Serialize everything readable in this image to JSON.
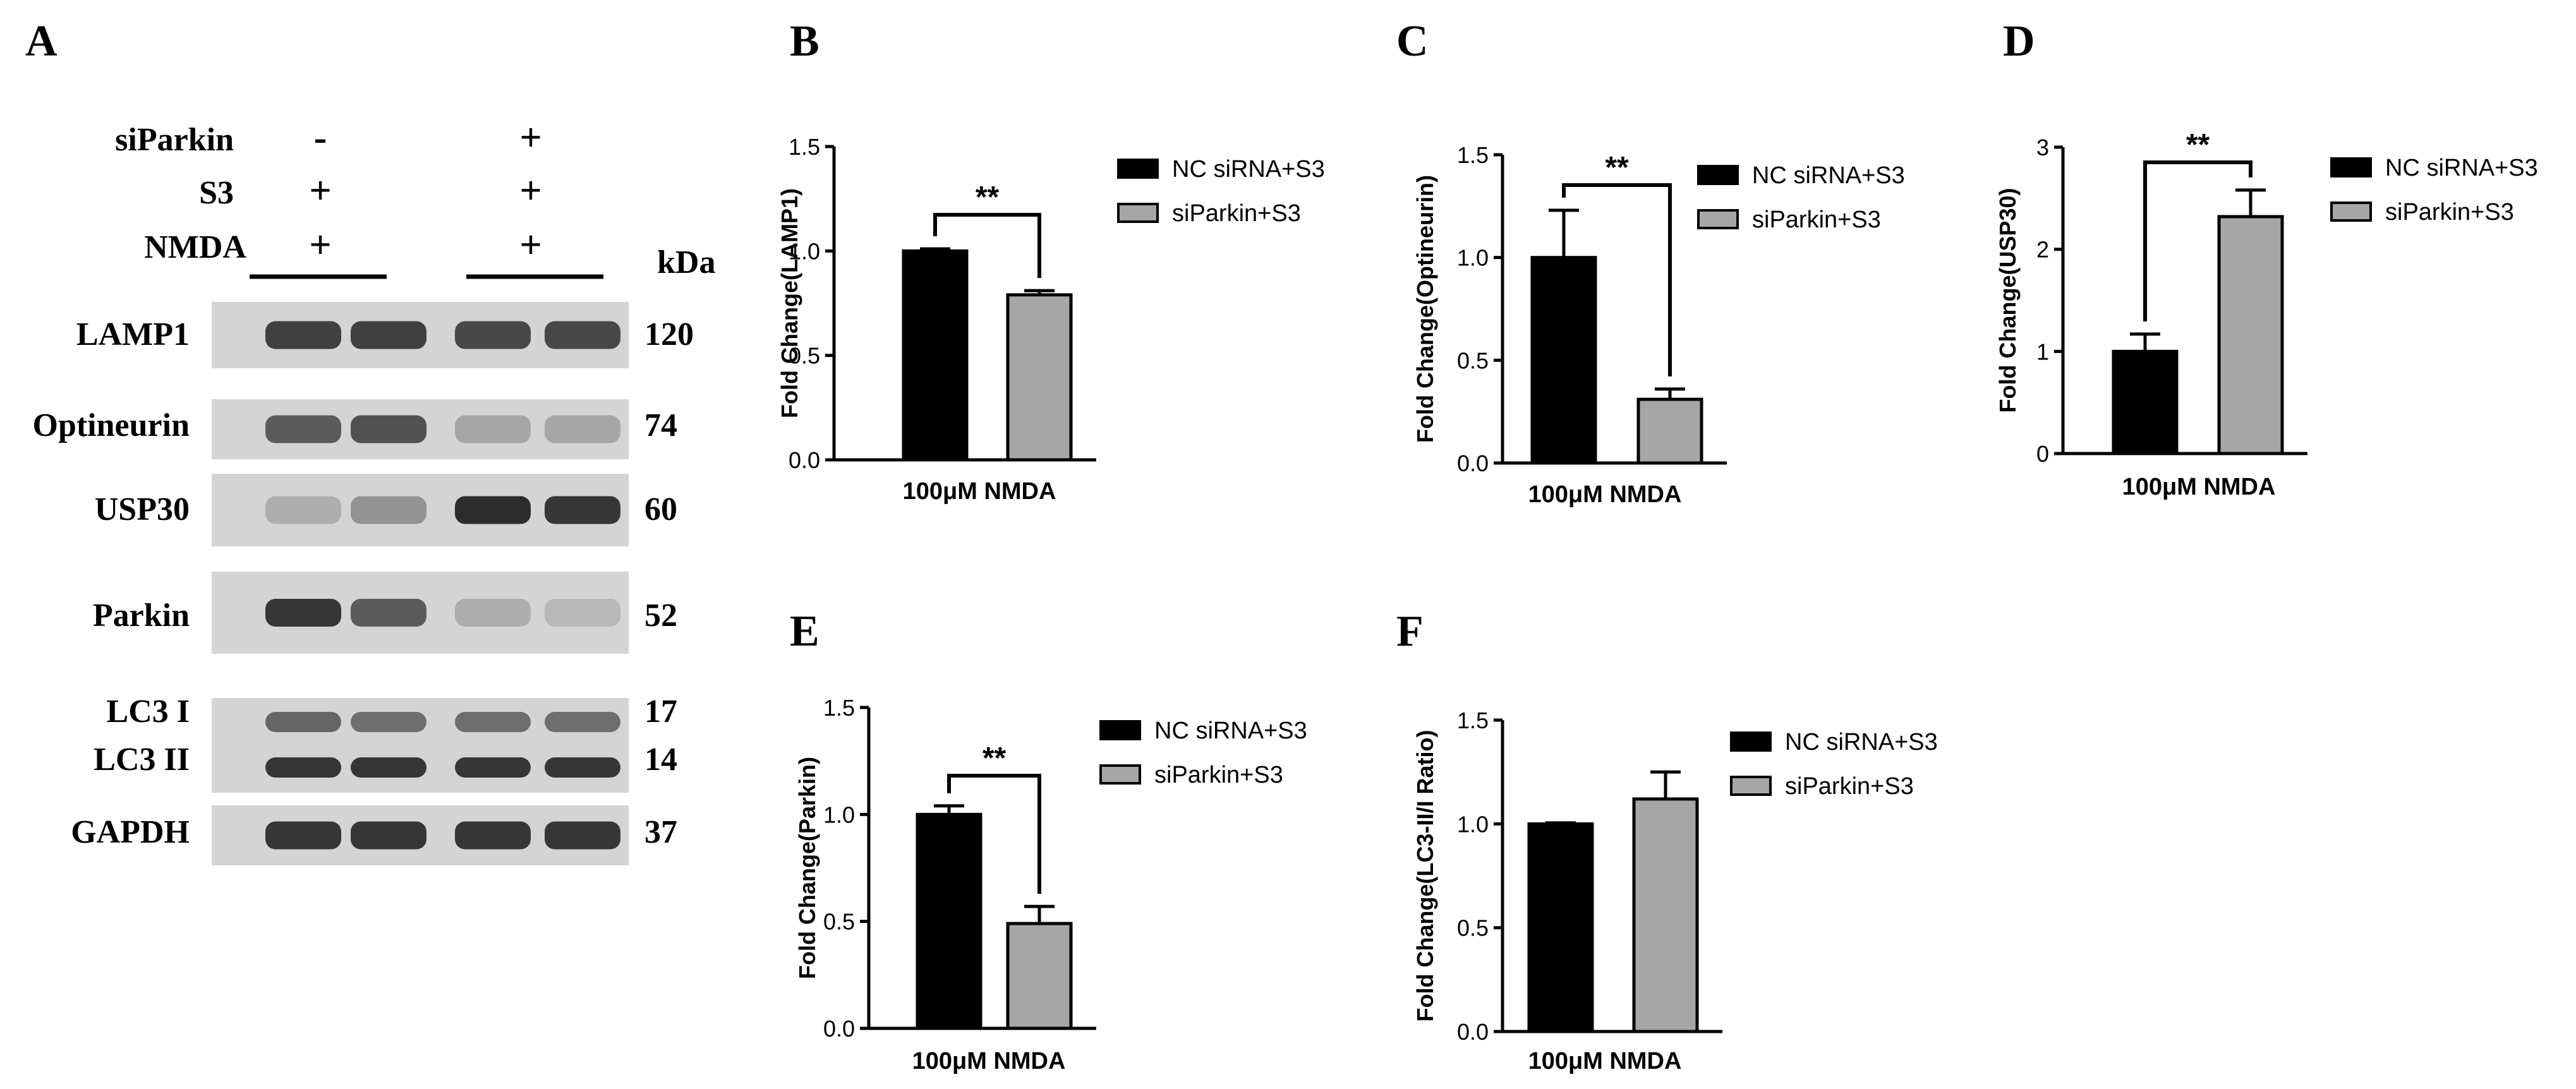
{
  "panel_a": {
    "letter": "A",
    "conditions": [
      {
        "label": "siParkin",
        "group1": "-",
        "group2": "+"
      },
      {
        "label": "S3",
        "group1": "+",
        "group2": "+"
      },
      {
        "label": "NMDA",
        "group1": "+",
        "group2": "+"
      }
    ],
    "kda_header": "kDa",
    "blots": [
      {
        "label": "LAMP1",
        "kda": "120",
        "intensities": [
          0.8,
          0.8,
          0.75,
          0.75
        ]
      },
      {
        "label": "Optineurin",
        "kda": "74",
        "intensities": [
          0.65,
          0.7,
          0.25,
          0.25
        ]
      },
      {
        "label": "USP30",
        "kda": "60",
        "intensities": [
          0.2,
          0.35,
          0.9,
          0.85
        ]
      },
      {
        "label": "Parkin",
        "kda": "52",
        "intensities": [
          0.85,
          0.65,
          0.2,
          0.15
        ]
      },
      {
        "label": "LC3 I",
        "kda": "17",
        "intensities": [
          0.6,
          0.55,
          0.55,
          0.55
        ]
      },
      {
        "label": "LC3 II",
        "kda": "14",
        "intensities": [
          0.85,
          0.85,
          0.85,
          0.85
        ]
      },
      {
        "label": "GAPDH",
        "kda": "37",
        "intensities": [
          0.85,
          0.85,
          0.85,
          0.85
        ]
      }
    ]
  },
  "colors": {
    "series1": "#000000",
    "series2": "#a6a6a6",
    "axis": "#000000",
    "blot_background": "#d4d4d4",
    "band": "#1a1a1a"
  },
  "chart_data": [
    {
      "letter": "B",
      "type": "bar",
      "ylabel": "Fold Change(LAMP1)",
      "xlabel": "100μM NMDA",
      "ylim": [
        0,
        1.5
      ],
      "yticks": [
        "0.0",
        "0.5",
        "1.0",
        "1.5"
      ],
      "yticks_values": [
        0,
        0.5,
        1.0,
        1.5
      ],
      "series": [
        {
          "name": "NC siRNA+S3",
          "value": 1.0,
          "error": 0.01
        },
        {
          "name": "siParkin+S3",
          "value": 0.79,
          "error": 0.02
        }
      ],
      "significance": "**"
    },
    {
      "letter": "C",
      "type": "bar",
      "ylabel": "Fold Change(Optineurin)",
      "xlabel": "100μM NMDA",
      "ylim": [
        0,
        1.5
      ],
      "yticks": [
        "0.0",
        "0.5",
        "1.0",
        "1.5"
      ],
      "yticks_values": [
        0,
        0.5,
        1.0,
        1.5
      ],
      "series": [
        {
          "name": "NC siRNA+S3",
          "value": 1.0,
          "error": 0.23
        },
        {
          "name": "siParkin+S3",
          "value": 0.31,
          "error": 0.05
        }
      ],
      "significance": "**"
    },
    {
      "letter": "D",
      "type": "bar",
      "ylabel": "Fold Change(USP30)",
      "xlabel": "100μM NMDA",
      "ylim": [
        0,
        3
      ],
      "yticks": [
        "0",
        "1",
        "2",
        "3"
      ],
      "yticks_values": [
        0,
        1,
        2,
        3
      ],
      "series": [
        {
          "name": "NC siRNA+S3",
          "value": 1.0,
          "error": 0.17
        },
        {
          "name": "siParkin+S3",
          "value": 2.32,
          "error": 0.26
        }
      ],
      "significance": "**"
    },
    {
      "letter": "E",
      "type": "bar",
      "ylabel": "Fold Change(Parkin)",
      "xlabel": "100μM NMDA",
      "ylim": [
        0,
        1.5
      ],
      "yticks": [
        "0.0",
        "0.5",
        "1.0",
        "1.5"
      ],
      "yticks_values": [
        0,
        0.5,
        1.0,
        1.5
      ],
      "series": [
        {
          "name": "NC siRNA+S3",
          "value": 1.0,
          "error": 0.04
        },
        {
          "name": "siParkin+S3",
          "value": 0.49,
          "error": 0.08
        }
      ],
      "significance": "**"
    },
    {
      "letter": "F",
      "type": "bar",
      "ylabel": "Fold Change(LC3-II/I Ratio)",
      "xlabel": "100μM NMDA",
      "ylim": [
        0,
        1.5
      ],
      "yticks": [
        "0.0",
        "0.5",
        "1.0",
        "1.5"
      ],
      "yticks_values": [
        0,
        0.5,
        1.0,
        1.5
      ],
      "series": [
        {
          "name": "NC siRNA+S3",
          "value": 1.0,
          "error": 0.005
        },
        {
          "name": "siParkin+S3",
          "value": 1.12,
          "error": 0.13
        }
      ],
      "significance": ""
    }
  ]
}
